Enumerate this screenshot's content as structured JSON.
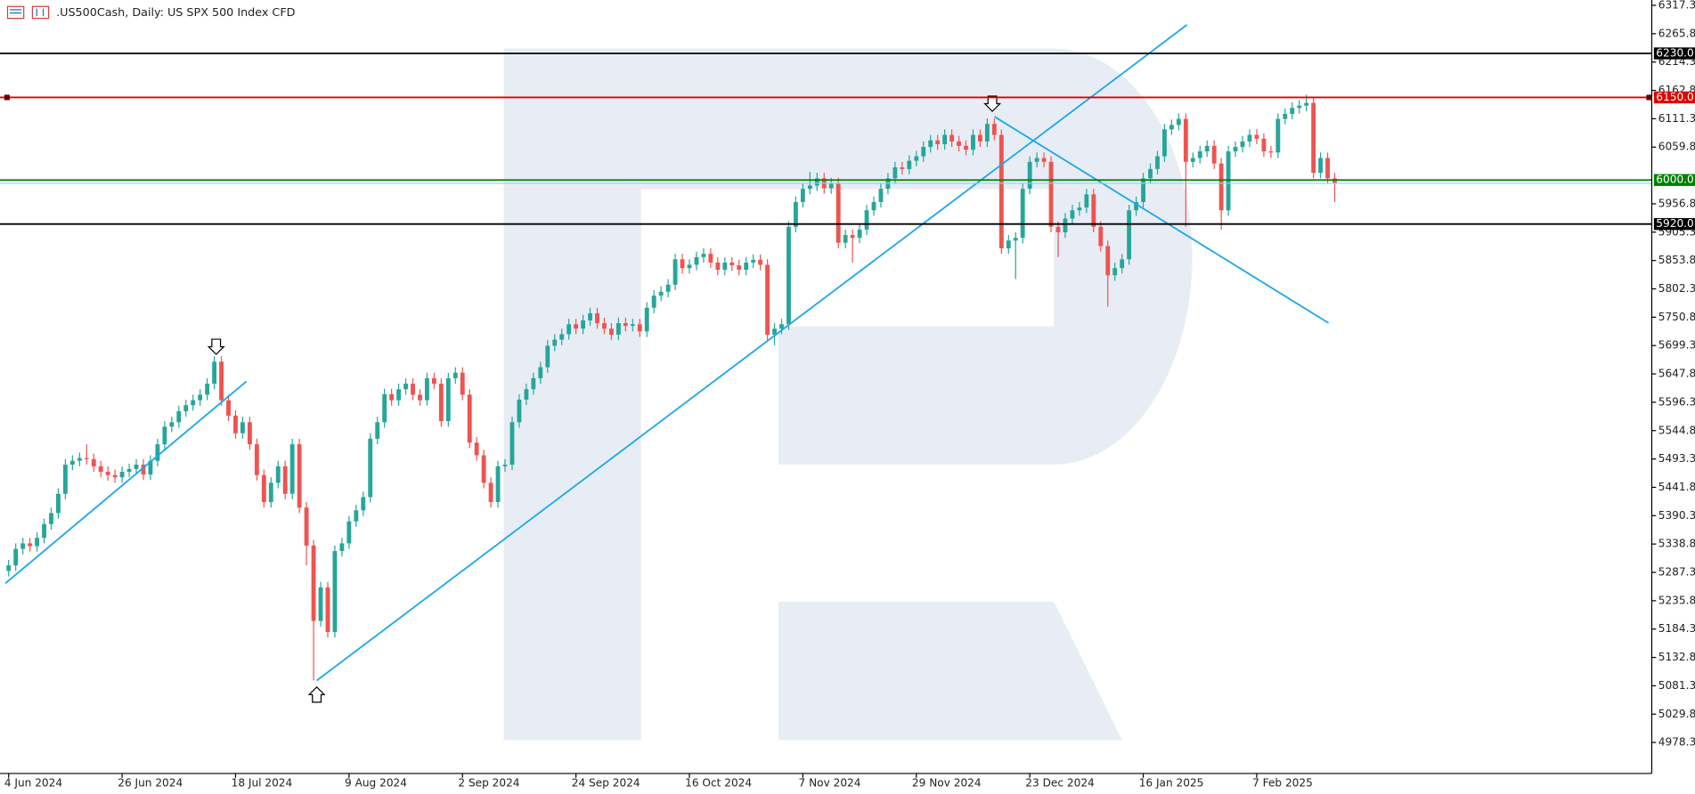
{
  "chart_data": {
    "type": "candlestick",
    "title": ".US500Cash, Daily:  US SPX 500 Index CFD",
    "up_color": "#26a69a",
    "down_color": "#ef5350",
    "categories": [
      "4 Jun 2024",
      null,
      null,
      null,
      null,
      null,
      null,
      null,
      null,
      null,
      null,
      null,
      null,
      null,
      null,
      null,
      "26 Jun 2024",
      null,
      null,
      null,
      null,
      null,
      null,
      null,
      null,
      null,
      null,
      null,
      null,
      null,
      null,
      null,
      "18 Jul 2024",
      null,
      null,
      null,
      null,
      null,
      null,
      null,
      null,
      null,
      null,
      null,
      null,
      null,
      null,
      null,
      "9 Aug 2024",
      null,
      null,
      null,
      null,
      null,
      null,
      null,
      null,
      null,
      null,
      null,
      null,
      null,
      null,
      null,
      "2 Sep 2024",
      null,
      null,
      null,
      null,
      null,
      null,
      null,
      null,
      null,
      null,
      null,
      null,
      null,
      null,
      null,
      "24 Sep 2024",
      null,
      null,
      null,
      null,
      null,
      null,
      null,
      null,
      null,
      null,
      null,
      null,
      null,
      null,
      null,
      "16 Oct 2024",
      null,
      null,
      null,
      null,
      null,
      null,
      null,
      null,
      null,
      null,
      null,
      null,
      null,
      null,
      null,
      "7 Nov 2024",
      null,
      null,
      null,
      null,
      null,
      null,
      null,
      null,
      null,
      null,
      null,
      null,
      null,
      null,
      null,
      "29 Nov 2024",
      null,
      null,
      null,
      null,
      null,
      null,
      null,
      null,
      null,
      null,
      null,
      null,
      null,
      null,
      null,
      "23 Dec 2024",
      null,
      null,
      null,
      null,
      null,
      null,
      null,
      null,
      null,
      null,
      null,
      null,
      null,
      null,
      null,
      "16 Jan 2025",
      null,
      null,
      null,
      null,
      null,
      null,
      null,
      null,
      null,
      null,
      null,
      null,
      null,
      null,
      null,
      "7 Feb 2025",
      null,
      null,
      null,
      null,
      null,
      null,
      null,
      null,
      null,
      null,
      null
    ],
    "open": [
      5290,
      5300,
      5330,
      5340,
      5335,
      5350,
      5375,
      5395,
      5430,
      5483,
      5490,
      5495,
      5493,
      5480,
      5470,
      5464,
      5460,
      5470,
      5475,
      5483,
      5465,
      5490,
      5520,
      5552,
      5560,
      5580,
      5591,
      5600,
      5610,
      5630,
      5670,
      5600,
      5572,
      5540,
      5560,
      5520,
      5464,
      5415,
      5450,
      5480,
      5430,
      5520,
      5405,
      5336,
      5199,
      5260,
      5179,
      5326,
      5340,
      5380,
      5400,
      5424,
      5530,
      5560,
      5611,
      5600,
      5620,
      5630,
      5610,
      5600,
      5640,
      5630,
      5562,
      5640,
      5650,
      5610,
      5523,
      5500,
      5450,
      5415,
      5480,
      5483,
      5560,
      5601,
      5620,
      5640,
      5660,
      5699,
      5710,
      5720,
      5738,
      5730,
      5745,
      5758,
      5740,
      5730,
      5719,
      5740,
      5735,
      5738,
      5725,
      5768,
      5790,
      5797,
      5810,
      5856,
      5840,
      5846,
      5860,
      5866,
      5850,
      5837,
      5850,
      5845,
      5837,
      5850,
      5855,
      5846,
      5719,
      5730,
      5738,
      5915,
      5960,
      5984,
      5990,
      6003,
      5985,
      5994,
      5886,
      5900,
      5895,
      5910,
      5945,
      5960,
      5984,
      6003,
      6023,
      6020,
      6035,
      6043,
      6060,
      6072,
      6065,
      6082,
      6070,
      6062,
      6055,
      6082,
      6070,
      6102,
      6082,
      5876,
      5890,
      5895,
      5984,
      6033,
      6040,
      6033,
      5915,
      5905,
      5930,
      5945,
      5950,
      5974,
      5915,
      5880,
      5827,
      5840,
      5856,
      5945,
      5960,
      6003,
      6020,
      6043,
      6092,
      6100,
      6111,
      6033,
      6040,
      6052,
      6062,
      6030,
      5945,
      6052,
      6060,
      6070,
      6082,
      6075,
      6052,
      6050,
      6111,
      6120,
      6131,
      6135,
      6140,
      6013,
      6040,
      6003
    ],
    "high": [
      5310,
      5340,
      5350,
      5350,
      5360,
      5385,
      5405,
      5440,
      5493,
      5500,
      5505,
      5520,
      5503,
      5490,
      5480,
      5474,
      5480,
      5485,
      5493,
      5493,
      5500,
      5530,
      5562,
      5570,
      5590,
      5601,
      5610,
      5620,
      5640,
      5680,
      5680,
      5610,
      5582,
      5570,
      5570,
      5530,
      5474,
      5460,
      5490,
      5490,
      5530,
      5530,
      5415,
      5346,
      5270,
      5270,
      5336,
      5350,
      5390,
      5410,
      5434,
      5540,
      5570,
      5621,
      5621,
      5630,
      5640,
      5640,
      5620,
      5650,
      5650,
      5640,
      5650,
      5660,
      5660,
      5620,
      5533,
      5510,
      5460,
      5490,
      5493,
      5570,
      5611,
      5630,
      5650,
      5670,
      5709,
      5720,
      5730,
      5748,
      5748,
      5755,
      5768,
      5768,
      5750,
      5740,
      5750,
      5750,
      5748,
      5748,
      5778,
      5800,
      5807,
      5820,
      5866,
      5866,
      5856,
      5870,
      5876,
      5876,
      5860,
      5860,
      5860,
      5855,
      5860,
      5865,
      5865,
      5856,
      5740,
      5748,
      5925,
      5970,
      5994,
      6015,
      6013,
      6013,
      6004,
      6004,
      5910,
      5910,
      5920,
      5955,
      5970,
      5994,
      6013,
      6033,
      6033,
      6045,
      6053,
      6070,
      6082,
      6082,
      6092,
      6092,
      6080,
      6072,
      6092,
      6092,
      6112,
      6112,
      6092,
      5900,
      5905,
      5994,
      6043,
      6050,
      6050,
      6043,
      5925,
      5940,
      5955,
      5960,
      5984,
      5984,
      5925,
      5890,
      5850,
      5866,
      5955,
      5970,
      6013,
      6030,
      6053,
      6102,
      6110,
      6121,
      6121,
      6050,
      6062,
      6072,
      6072,
      6040,
      6062,
      6070,
      6080,
      6092,
      6092,
      6085,
      6062,
      6121,
      6130,
      6141,
      6145,
      6155,
      6150,
      6050,
      6050,
      6013
    ],
    "low": [
      5280,
      5290,
      5320,
      5325,
      5325,
      5340,
      5365,
      5385,
      5420,
      5473,
      5480,
      5483,
      5470,
      5460,
      5454,
      5450,
      5450,
      5460,
      5465,
      5455,
      5455,
      5480,
      5510,
      5542,
      5550,
      5570,
      5581,
      5590,
      5600,
      5620,
      5590,
      5562,
      5530,
      5530,
      5510,
      5454,
      5405,
      5405,
      5440,
      5420,
      5420,
      5395,
      5300,
      5091,
      5189,
      5169,
      5169,
      5316,
      5330,
      5370,
      5390,
      5414,
      5520,
      5550,
      5590,
      5590,
      5610,
      5600,
      5590,
      5590,
      5620,
      5552,
      5552,
      5630,
      5600,
      5513,
      5490,
      5440,
      5405,
      5405,
      5470,
      5473,
      5550,
      5591,
      5610,
      5630,
      5650,
      5689,
      5700,
      5710,
      5720,
      5720,
      5735,
      5730,
      5720,
      5709,
      5709,
      5725,
      5725,
      5715,
      5715,
      5758,
      5780,
      5787,
      5800,
      5830,
      5830,
      5836,
      5850,
      5840,
      5827,
      5827,
      5835,
      5827,
      5827,
      5840,
      5836,
      5709,
      5700,
      5720,
      5728,
      5905,
      5950,
      5974,
      5980,
      5975,
      5975,
      5876,
      5876,
      5850,
      5885,
      5900,
      5935,
      5950,
      5974,
      5993,
      6010,
      6010,
      6025,
      6033,
      6050,
      6055,
      6055,
      6060,
      6052,
      6045,
      6045,
      6060,
      6060,
      6072,
      5866,
      5866,
      5820,
      5885,
      5974,
      6023,
      6023,
      5905,
      5860,
      5895,
      5920,
      5935,
      5940,
      5905,
      5870,
      5770,
      5817,
      5830,
      5846,
      5935,
      5950,
      5993,
      6010,
      6033,
      6082,
      6090,
      5915,
      6023,
      6030,
      6042,
      6020,
      5910,
      5935,
      6042,
      6050,
      6060,
      6065,
      6042,
      6040,
      6040,
      6101,
      6110,
      6121,
      6125,
      6003,
      6003,
      5993,
      5960
    ],
    "close": [
      5300,
      5330,
      5340,
      5335,
      5350,
      5375,
      5395,
      5430,
      5483,
      5490,
      5495,
      5493,
      5480,
      5470,
      5464,
      5460,
      5470,
      5475,
      5483,
      5465,
      5490,
      5520,
      5552,
      5560,
      5580,
      5591,
      5600,
      5610,
      5630,
      5670,
      5600,
      5572,
      5540,
      5560,
      5520,
      5464,
      5415,
      5450,
      5480,
      5430,
      5520,
      5405,
      5336,
      5199,
      5260,
      5179,
      5326,
      5340,
      5380,
      5400,
      5424,
      5530,
      5560,
      5611,
      5600,
      5620,
      5630,
      5610,
      5600,
      5640,
      5630,
      5562,
      5640,
      5650,
      5610,
      5523,
      5500,
      5450,
      5415,
      5480,
      5483,
      5560,
      5601,
      5620,
      5640,
      5660,
      5699,
      5710,
      5720,
      5738,
      5730,
      5745,
      5758,
      5740,
      5730,
      5719,
      5740,
      5735,
      5738,
      5725,
      5768,
      5790,
      5797,
      5810,
      5856,
      5840,
      5846,
      5860,
      5866,
      5850,
      5837,
      5850,
      5845,
      5837,
      5850,
      5855,
      5846,
      5719,
      5730,
      5738,
      5915,
      5960,
      5984,
      5990,
      6003,
      5985,
      5994,
      5886,
      5900,
      5895,
      5910,
      5945,
      5960,
      5984,
      6003,
      6023,
      6020,
      6035,
      6043,
      6060,
      6072,
      6065,
      6082,
      6070,
      6062,
      6055,
      6082,
      6070,
      6102,
      6082,
      5876,
      5890,
      5895,
      5984,
      6033,
      6040,
      6033,
      5915,
      5905,
      5930,
      5945,
      5950,
      5974,
      5915,
      5880,
      5827,
      5840,
      5856,
      5945,
      5960,
      6003,
      6020,
      6043,
      6092,
      6100,
      6111,
      6033,
      6040,
      6052,
      6062,
      6030,
      5945,
      6052,
      6060,
      6070,
      6082,
      6075,
      6052,
      6050,
      6111,
      6120,
      6131,
      6135,
      6140,
      6013,
      6040,
      6003,
      5994
    ],
    "ylim": [
      4922,
      6327
    ],
    "yticks": [
      6317.3,
      6265.8,
      6214.3,
      6162.8,
      6111.3,
      6059.8,
      5956.8,
      5905.3,
      5853.8,
      5802.3,
      5750.8,
      5699.3,
      5647.8,
      5596.3,
      5544.8,
      5493.3,
      5441.8,
      5390.3,
      5338.8,
      5287.3,
      5235.8,
      5184.3,
      5132.8,
      5081.3,
      5029.8,
      4978.3
    ],
    "levels": [
      {
        "value": 6230,
        "label": "6230.0",
        "color": "#000000"
      },
      {
        "value": 6150,
        "label": "6150.0",
        "color": "#e00000"
      },
      {
        "value": 6000,
        "label": "6000.0",
        "color": "#008000"
      },
      {
        "value": 5920,
        "label": "5920.0",
        "color": "#000000"
      }
    ]
  }
}
